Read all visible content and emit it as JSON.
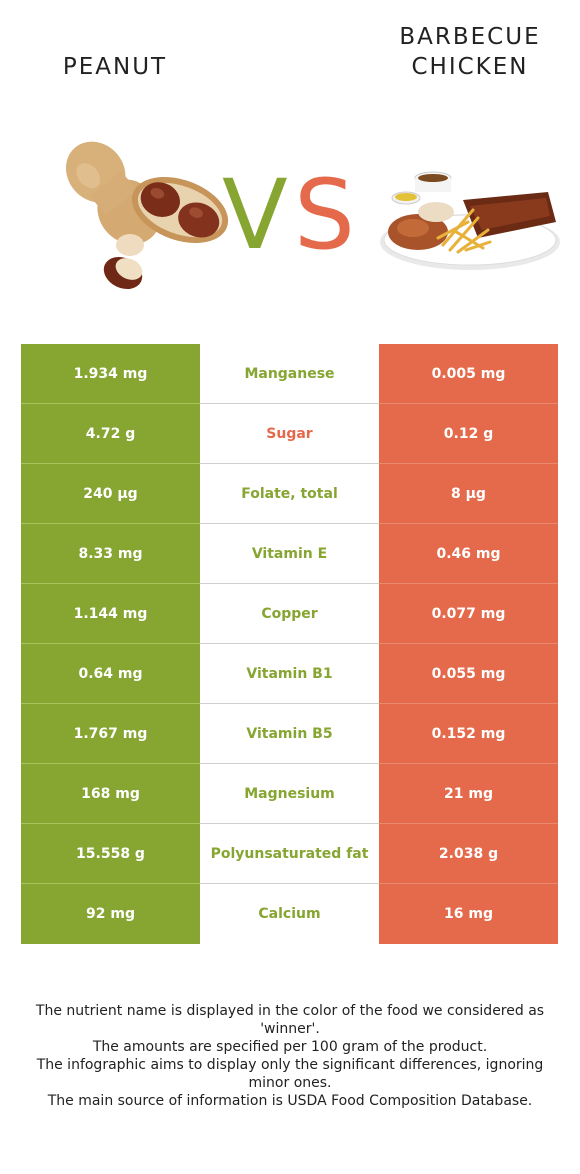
{
  "left_food": {
    "title": "PEANUT",
    "color": "#86a531"
  },
  "right_food": {
    "title_line1": "BARBECUE",
    "title_line2": "CHICKEN",
    "color": "#e46a4b"
  },
  "vs": {
    "v": "V",
    "s": "S"
  },
  "rows": [
    {
      "left": "1.934 mg",
      "nutrient": "Manganese",
      "right": "0.005 mg",
      "winner": "left"
    },
    {
      "left": "4.72 g",
      "nutrient": "Sugar",
      "right": "0.12 g",
      "winner": "right"
    },
    {
      "left": "240 µg",
      "nutrient": "Folate, total",
      "right": "8 µg",
      "winner": "left"
    },
    {
      "left": "8.33 mg",
      "nutrient": "Vitamin E",
      "right": "0.46 mg",
      "winner": "left"
    },
    {
      "left": "1.144 mg",
      "nutrient": "Copper",
      "right": "0.077 mg",
      "winner": "left"
    },
    {
      "left": "0.64 mg",
      "nutrient": "Vitamin B1",
      "right": "0.055 mg",
      "winner": "left"
    },
    {
      "left": "1.767 mg",
      "nutrient": "Vitamin B5",
      "right": "0.152 mg",
      "winner": "left"
    },
    {
      "left": "168 mg",
      "nutrient": "Magnesium",
      "right": "21 mg",
      "winner": "left"
    },
    {
      "left": "15.558 g",
      "nutrient": "Polyunsaturated fat",
      "right": "2.038 g",
      "winner": "left"
    },
    {
      "left": "92 mg",
      "nutrient": "Calcium",
      "right": "16 mg",
      "winner": "left"
    }
  ],
  "footnote": [
    "The nutrient name is displayed in the color of the food we considered as 'winner'.",
    "The amounts are specified per 100 gram of the product.",
    "The infographic aims to display only the significant differences, ignoring minor ones.",
    "The main source of information is USDA Food Composition Database."
  ]
}
